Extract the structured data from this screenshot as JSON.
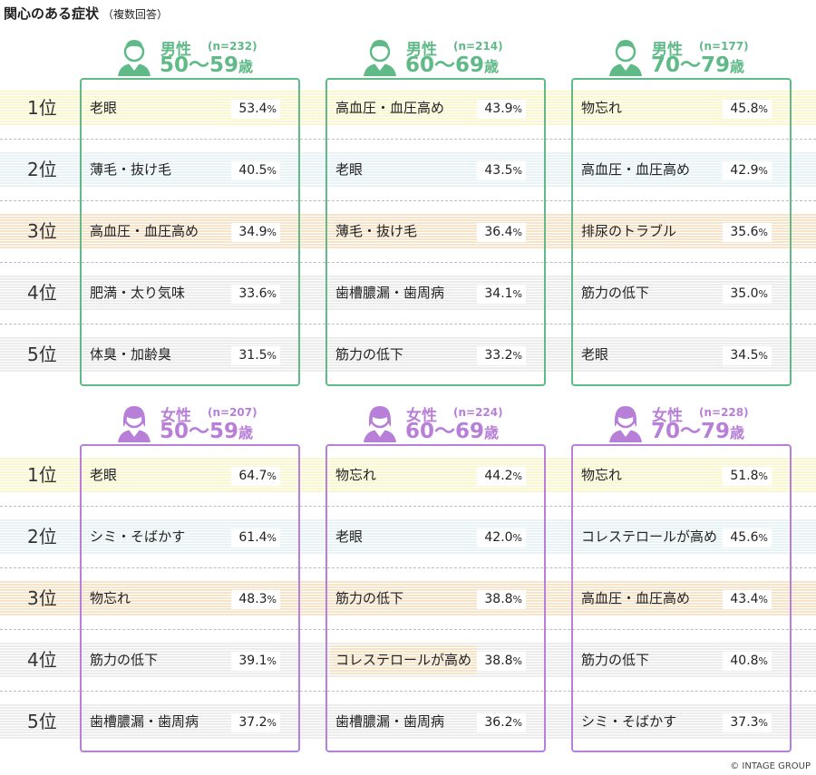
{
  "title": "関心のある症状",
  "subtitle": "（複数回答）",
  "copyright": "© INTAGE GROUP",
  "colors": {
    "male": "#5fba88",
    "female": "#b77fd8",
    "rank_bands": [
      "#faf7cf",
      "#e7f3f7",
      "#f6e3c8",
      "#ececec",
      "#ececec"
    ]
  },
  "rank_labels": [
    "1位",
    "2位",
    "3位",
    "4位",
    "5位"
  ],
  "icons": {
    "male": "male-person-icon",
    "female": "female-person-icon"
  },
  "chart_data": {
    "type": "table",
    "unit": "%",
    "groups": [
      {
        "gender": "男性",
        "n": "(n=232)",
        "age": "50〜59",
        "age_suffix": "歳",
        "items": [
          {
            "label": "老眼",
            "value": "53.4"
          },
          {
            "label": "薄毛・抜け毛",
            "value": "40.5"
          },
          {
            "label": "高血圧・血圧高め",
            "value": "34.9"
          },
          {
            "label": "肥満・太り気味",
            "value": "33.6"
          },
          {
            "label": "体臭・加齢臭",
            "value": "31.5"
          }
        ]
      },
      {
        "gender": "男性",
        "n": "(n=214)",
        "age": "60〜69",
        "age_suffix": "歳",
        "items": [
          {
            "label": "高血圧・血圧高め",
            "value": "43.9"
          },
          {
            "label": "老眼",
            "value": "43.5"
          },
          {
            "label": "薄毛・抜け毛",
            "value": "36.4"
          },
          {
            "label": "歯槽膿漏・歯周病",
            "value": "34.1"
          },
          {
            "label": "筋力の低下",
            "value": "33.2"
          }
        ]
      },
      {
        "gender": "男性",
        "n": "(n=177)",
        "age": "70〜79",
        "age_suffix": "歳",
        "items": [
          {
            "label": "物忘れ",
            "value": "45.8"
          },
          {
            "label": "高血圧・血圧高め",
            "value": "42.9"
          },
          {
            "label": "排尿のトラブル",
            "value": "35.6"
          },
          {
            "label": "筋力の低下",
            "value": "35.0"
          },
          {
            "label": "老眼",
            "value": "34.5"
          }
        ]
      },
      {
        "gender": "女性",
        "n": "(n=207)",
        "age": "50〜59",
        "age_suffix": "歳",
        "items": [
          {
            "label": "老眼",
            "value": "64.7"
          },
          {
            "label": "シミ・そばかす",
            "value": "61.4"
          },
          {
            "label": "物忘れ",
            "value": "48.3"
          },
          {
            "label": "筋力の低下",
            "value": "39.1"
          },
          {
            "label": "歯槽膿漏・歯周病",
            "value": "37.2"
          }
        ]
      },
      {
        "gender": "女性",
        "n": "(n=224)",
        "age": "60〜69",
        "age_suffix": "歳",
        "items": [
          {
            "label": "物忘れ",
            "value": "44.2"
          },
          {
            "label": "老眼",
            "value": "42.0"
          },
          {
            "label": "筋力の低下",
            "value": "38.8"
          },
          {
            "label": "コレステロールが高め",
            "value": "38.8"
          },
          {
            "label": "歯槽膿漏・歯周病",
            "value": "36.2"
          }
        ]
      },
      {
        "gender": "女性",
        "n": "(n=228)",
        "age": "70〜79",
        "age_suffix": "歳",
        "items": [
          {
            "label": "物忘れ",
            "value": "51.8"
          },
          {
            "label": "コレステロールが高め",
            "value": "45.6"
          },
          {
            "label": "高血圧・血圧高め",
            "value": "43.4"
          },
          {
            "label": "筋力の低下",
            "value": "40.8"
          },
          {
            "label": "シミ・そばかす",
            "value": "37.3"
          }
        ]
      }
    ]
  }
}
